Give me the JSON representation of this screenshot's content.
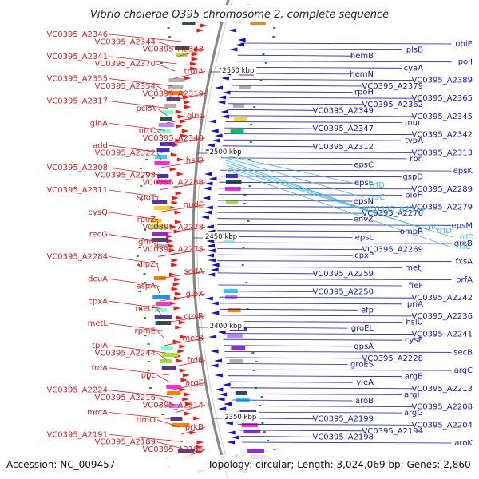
{
  "title": "Vibrio cholerae O395 chromosome 2, complete sequence",
  "footer": {
    "accession": "Accession: NC_009457",
    "summary": "Topology: circular; Length: 3,024,069 bp; Genes: 2,860"
  },
  "colors": {
    "forward_label": "#e31a1c",
    "reverse_label": "#1515c8",
    "rna_label": "#3fb8e0",
    "backbone": "#888888"
  },
  "kbp_ticks": [
    "2550 kbp",
    "2500 kbp",
    "2450 kbp",
    "2400 kbp",
    "2350 kbp"
  ],
  "left_labels": [
    "VC0395_A2346",
    "VC0395_A2344",
    "VC0395_A2343",
    "VC0395_A2341",
    "VC0395_A2370",
    "trmA",
    "VC0395_A2355",
    "VC0395_A2354",
    "VC0395_A2319",
    "VC0395_A2317",
    "pckA",
    "glnL",
    "glnA",
    "ntrC",
    "VC0395_A2340",
    "add",
    "VC0395_A2322",
    "hslO",
    "VC0395_A2308",
    "VC0395_A2293",
    "VC0395_A2288",
    "VC0395_A2311",
    "spoT",
    "nudE",
    "cysQ",
    "rpoZ",
    "VC0395_A2278",
    "recG",
    "gmk",
    "VC0395_A2275",
    "VC0395_A2284",
    "dipZ",
    "sodA",
    "dcuA",
    "aspA",
    "glpX",
    "cpxA",
    "metF",
    "cpxR",
    "metL",
    "rpmE",
    "metB",
    "tpiA",
    "VC0395_A2244",
    "frdB",
    "frdA",
    "ppc",
    "argE",
    "VC0395_A2224",
    "VC0395_A2216",
    "VC0395_A2214",
    "mrcA",
    "rimO",
    "prkB",
    "VC0395_A2191",
    "VC0395_A2189",
    "VC0395_A2186"
  ],
  "right_labels": [
    "ubiE",
    "plsB",
    "hemB",
    "polI",
    "cyaA",
    "hemN",
    "VC0395_A2389",
    "VC0395_A2379",
    "rpoH",
    "VC0395_A2365",
    "VC0395_A2362",
    "VC0395_A2349",
    "VC0395_A2345",
    "murI",
    "VC0395_A2347",
    "VC0395_A2342",
    "typA",
    "VC0395_A2312",
    "VC0395_A2313",
    "rbn",
    "epsC",
    "epsK",
    "gspD",
    "epsE",
    "VC0395_A2289",
    "bioH",
    "epsN",
    "VC0395_A2279",
    "VC0395_A2276",
    "envZ",
    "epsM",
    "ompR",
    "epsL",
    "greB",
    "VC0395_A2269",
    "cpxP",
    "fxsA",
    "metJ",
    "VC0395_A2259",
    "prfA",
    "fieF",
    "VC0395_A2250",
    "VC0395_A2242",
    "priA",
    "efp",
    "VC0395_A2236",
    "hslU",
    "groEL",
    "VC0395_A2241",
    "cysE",
    "gpsA",
    "secB",
    "VC0395_A2228",
    "groES",
    "argC",
    "argB",
    "yjeA",
    "VC0395_A2213",
    "argH",
    "aroB",
    "VC0395_A2208",
    "argG",
    "VC0395_A2199",
    "VC0395_A2204",
    "VC0395_A2194",
    "VC0395_A2198",
    "aroK"
  ],
  "rna_labels": [
    "rrfD",
    "rrsC",
    "VC0395_A2324",
    "rrlC",
    "rrfD",
    "rrlD",
    "rrfC"
  ]
}
